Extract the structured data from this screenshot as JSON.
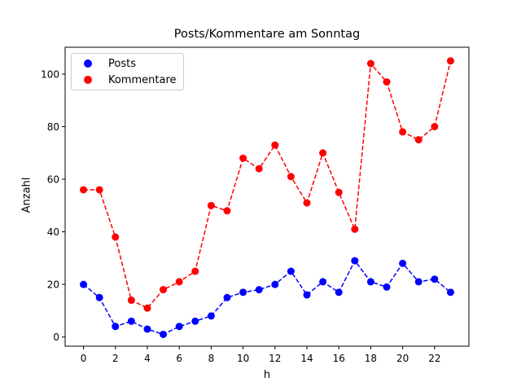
{
  "chart_data": {
    "type": "line",
    "title": "Posts/Kommentare am Sonntag",
    "xlabel": "h",
    "ylabel": "Anzahl",
    "x": [
      0,
      1,
      2,
      3,
      4,
      5,
      6,
      7,
      8,
      9,
      10,
      11,
      12,
      13,
      14,
      15,
      16,
      17,
      18,
      19,
      20,
      21,
      22,
      23
    ],
    "xticks": [
      0,
      2,
      4,
      6,
      8,
      10,
      12,
      14,
      16,
      18,
      20,
      22
    ],
    "yticks": [
      0,
      20,
      40,
      60,
      80,
      100
    ],
    "xlim": [
      -1.15,
      24.15
    ],
    "ylim": [
      -3.5,
      110.2
    ],
    "grid": false,
    "legend_position": "upper left",
    "series": [
      {
        "name": "Posts",
        "color": "#0000ff",
        "linestyle": "dashed",
        "marker": "o",
        "values": [
          20,
          15,
          4,
          6,
          3,
          1,
          4,
          6,
          8,
          15,
          17,
          18,
          20,
          25,
          16,
          21,
          17,
          29,
          21,
          19,
          28,
          21,
          22,
          17
        ]
      },
      {
        "name": "Kommentare",
        "color": "#ff0000",
        "linestyle": "dashed",
        "marker": "o",
        "values": [
          56,
          56,
          38,
          14,
          11,
          18,
          21,
          25,
          50,
          48,
          68,
          64,
          73,
          61,
          51,
          70,
          55,
          41,
          104,
          97,
          78,
          75,
          80,
          105
        ]
      }
    ]
  }
}
